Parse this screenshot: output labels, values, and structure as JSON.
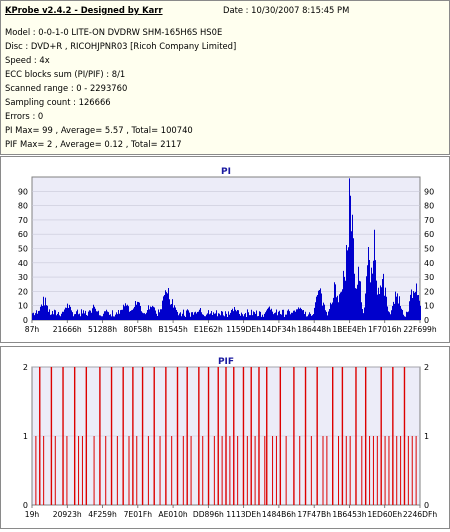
{
  "info": {
    "title": "KProbe v2.4.2 - Designed by Karr",
    "date": "Date : 10/30/2007 8:15:45 PM",
    "lines": [
      "Model : 0-0-1-0 LITE-ON DVDRW SHM-165H6S HS0E",
      "Disc : DVD+R , RICOHJPNR03 [Ricoh Company Limited]",
      "Speed : 4x",
      "ECC blocks sum (PI/PIF) : 8/1",
      "Scanned range : 0 - 2293760",
      "Sampling count : 126666",
      "Errors : 0",
      "PI Max= 99 , Average= 5.57 , Total= 100740",
      "PIF Max= 2 , Average= 0.12 , Total= 2117"
    ]
  },
  "colors": {
    "plot_bg": "#ececf8",
    "pi_bar": "#0000cc",
    "pif_bar": "#dd0000",
    "title_text": "#1a1aa0",
    "info_bg": "#ffffef"
  },
  "chart_data": [
    {
      "type": "bar",
      "title": "PI",
      "ylim": [
        0,
        100
      ],
      "yticks": [
        0,
        10,
        20,
        30,
        40,
        50,
        60,
        70,
        80,
        90
      ],
      "xtick_labels": [
        "87h",
        "21666h",
        "51288h",
        "80F58h",
        "B1545h",
        "E1E62h",
        "1159DEh",
        "14DF34h",
        "186448h",
        "1BEE4Eh",
        "1F7016h",
        "22F699h"
      ],
      "baseline_level": 6,
      "peaks": [
        {
          "pos": 0.03,
          "value": 17
        },
        {
          "pos": 0.09,
          "value": 13
        },
        {
          "pos": 0.16,
          "value": 12
        },
        {
          "pos": 0.24,
          "value": 13
        },
        {
          "pos": 0.27,
          "value": 15
        },
        {
          "pos": 0.305,
          "value": 14
        },
        {
          "pos": 0.345,
          "value": 27
        },
        {
          "pos": 0.36,
          "value": 16
        },
        {
          "pos": 0.43,
          "value": 9
        },
        {
          "pos": 0.52,
          "value": 10
        },
        {
          "pos": 0.61,
          "value": 11
        },
        {
          "pos": 0.69,
          "value": 13
        },
        {
          "pos": 0.74,
          "value": 24
        },
        {
          "pos": 0.78,
          "value": 28
        },
        {
          "pos": 0.8,
          "value": 36
        },
        {
          "pos": 0.812,
          "value": 60
        },
        {
          "pos": 0.818,
          "value": 99
        },
        {
          "pos": 0.825,
          "value": 80
        },
        {
          "pos": 0.84,
          "value": 45
        },
        {
          "pos": 0.865,
          "value": 52
        },
        {
          "pos": 0.88,
          "value": 66
        },
        {
          "pos": 0.9,
          "value": 38
        },
        {
          "pos": 0.94,
          "value": 22
        },
        {
          "pos": 0.985,
          "value": 32
        }
      ],
      "max": 99,
      "average": 5.57,
      "total": 100740
    },
    {
      "type": "bar",
      "title": "PIF",
      "ylim": [
        0,
        2
      ],
      "yticks": [
        0,
        1,
        2
      ],
      "xtick_labels": [
        "19h",
        "20923h",
        "4F259h",
        "7E01Fh",
        "AE010h",
        "DD896h",
        "1113DEh",
        "1484B6h",
        "17F47Bh",
        "1B6453h",
        "1ED60Eh",
        "2246DFh"
      ],
      "level_two_positions": [
        0.02,
        0.05,
        0.08,
        0.11,
        0.14,
        0.175,
        0.205,
        0.235,
        0.26,
        0.285,
        0.315,
        0.345,
        0.375,
        0.4,
        0.43,
        0.455,
        0.48,
        0.5,
        0.52,
        0.545,
        0.565,
        0.585,
        0.605,
        0.64,
        0.675,
        0.705,
        0.735,
        0.775,
        0.8,
        0.835,
        0.86,
        0.9,
        0.93,
        0.96
      ],
      "level_one_positions": [
        0.01,
        0.03,
        0.06,
        0.09,
        0.12,
        0.13,
        0.16,
        0.19,
        0.22,
        0.25,
        0.27,
        0.3,
        0.33,
        0.36,
        0.39,
        0.41,
        0.44,
        0.47,
        0.49,
        0.51,
        0.53,
        0.555,
        0.575,
        0.6,
        0.62,
        0.63,
        0.655,
        0.69,
        0.72,
        0.75,
        0.76,
        0.79,
        0.81,
        0.82,
        0.85,
        0.87,
        0.88,
        0.89,
        0.91,
        0.92,
        0.94,
        0.95,
        0.97,
        0.98,
        0.99
      ],
      "max": 2,
      "average": 0.12,
      "total": 2117
    }
  ]
}
